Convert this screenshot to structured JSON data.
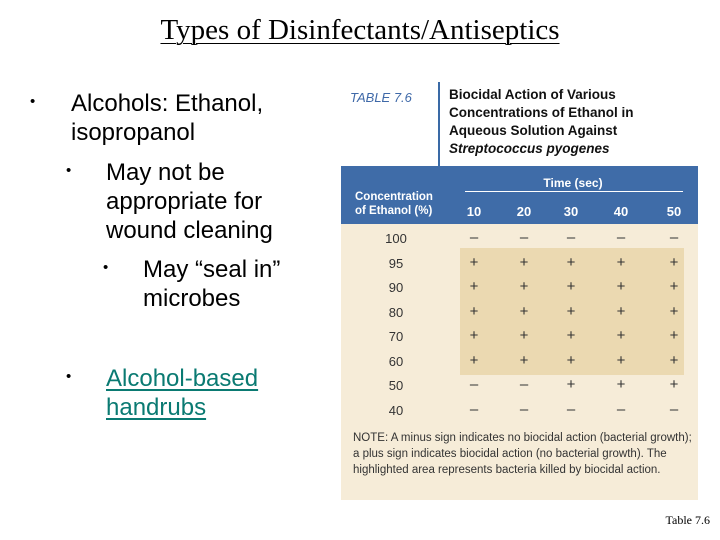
{
  "title": "Types of Disinfectants/Antiseptics",
  "bullets": {
    "b1": "Alcohols: Ethanol, isopropanol",
    "b2": "May not be appropriate for wound cleaning",
    "b3": "May “seal in” microbes",
    "b4": "Alcohol-based handrubs",
    "marker": "•"
  },
  "table": {
    "number": "TABLE 7.6",
    "caption_line1": "Biocidal Action of Various",
    "caption_line2": "Concentrations of Ethanol in",
    "caption_line3": "Aqueous Solution Against",
    "caption_organism": "Streptococcus pyogenes",
    "conc_header_line1": "Concentration",
    "conc_header_line2": "of Ethanol (%)",
    "time_header": "Time (sec)",
    "times": [
      "10",
      "20",
      "30",
      "40",
      "50"
    ],
    "rows": [
      {
        "conc": "100",
        "results": [
          "–",
          "–",
          "–",
          "–",
          "–"
        ]
      },
      {
        "conc": "95",
        "results": [
          "+",
          "+",
          "+",
          "+",
          "+"
        ]
      },
      {
        "conc": "90",
        "results": [
          "+",
          "+",
          "+",
          "+",
          "+"
        ]
      },
      {
        "conc": "80",
        "results": [
          "+",
          "+",
          "+",
          "+",
          "+"
        ]
      },
      {
        "conc": "70",
        "results": [
          "+",
          "+",
          "+",
          "+",
          "+"
        ]
      },
      {
        "conc": "60",
        "results": [
          "+",
          "+",
          "+",
          "+",
          "+"
        ]
      },
      {
        "conc": "50",
        "results": [
          "–",
          "–",
          "+",
          "+",
          "+"
        ]
      },
      {
        "conc": "40",
        "results": [
          "–",
          "–",
          "–",
          "–",
          "–"
        ]
      }
    ],
    "note": "NOTE: A minus sign indicates no biocidal action (bacterial growth); a plus sign indicates biocidal action (no bacterial growth). The highlighted area represents bacteria killed by biocidal action."
  },
  "caption": "Table 7.6",
  "colors": {
    "header_blue": "#3f6ca8",
    "table_bg": "#f6ecd8",
    "highlight": "#ebd9b1",
    "link": "#0a7a72"
  }
}
